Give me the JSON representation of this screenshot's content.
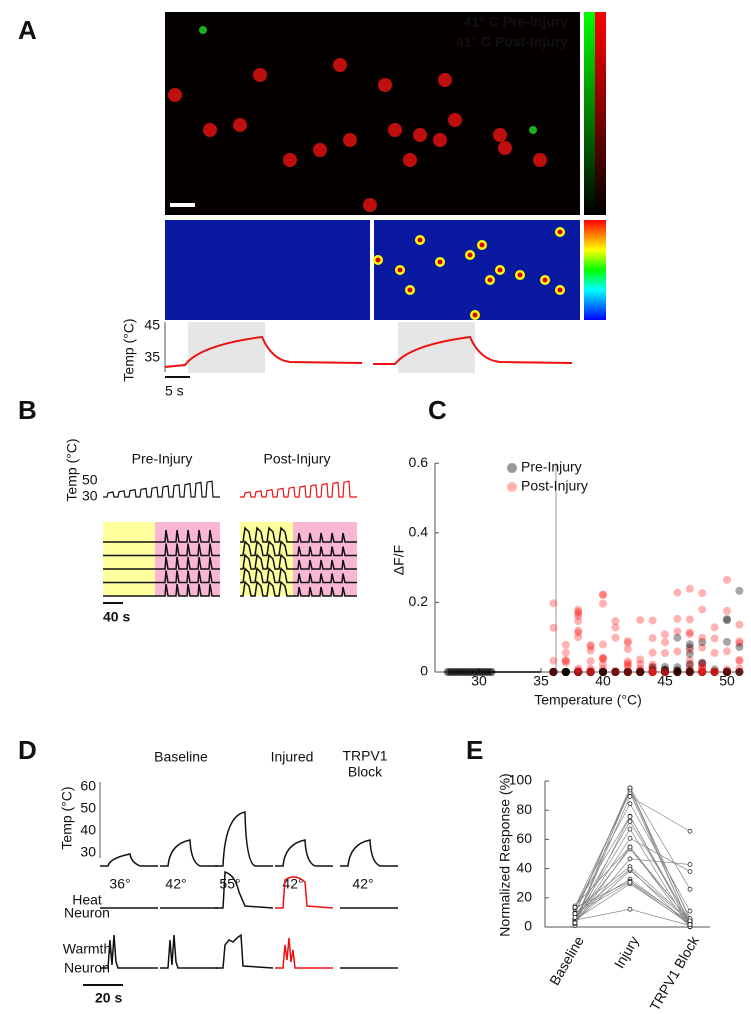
{
  "panels": {
    "A": {
      "label": "A",
      "legend": [
        "41° C Pre-Injury",
        "41° C Post-Injury"
      ],
      "temp_axis": {
        "label": "Temp (°C)",
        "ticks": [
          45,
          35
        ]
      },
      "scale_bar": "5 s"
    },
    "B": {
      "label": "B",
      "titles": [
        "Pre-Injury",
        "Post-Injury"
      ],
      "temp_axis": {
        "label": "Temp (°C)",
        "ticks": [
          50,
          30
        ]
      },
      "scale_bar": "40 s"
    },
    "C": {
      "label": "C",
      "ylabel": "ΔF/F",
      "xlabel": "Temperature (°C)",
      "yticks": [
        0,
        0.2,
        0.4,
        0.6
      ],
      "xticks": [
        30,
        35,
        40,
        45,
        50
      ],
      "legend": [
        "Pre-Injury",
        "Post-Injury"
      ]
    },
    "D": {
      "label": "D",
      "headers": [
        [
          "Baseline"
        ],
        [
          "Injured"
        ],
        [
          "TRPV1",
          "Block"
        ]
      ],
      "temp_axis": {
        "label": "Temp (°C)",
        "ticks": [
          60,
          50,
          40,
          30
        ]
      },
      "stimuli": [
        "36°",
        "42°",
        "55°",
        "42°",
        "42°"
      ],
      "rows": [
        [
          "Heat",
          "Neuron"
        ],
        [
          "Warmth",
          "Neuron"
        ]
      ],
      "scale_bar": "20 s"
    },
    "E": {
      "label": "E",
      "ylabel": "Normalized Response (%)",
      "yticks": [
        0,
        20,
        40,
        60,
        80,
        100
      ],
      "xticks": [
        "Baseline",
        "Injury",
        "TRPV1 Block"
      ]
    }
  }
}
